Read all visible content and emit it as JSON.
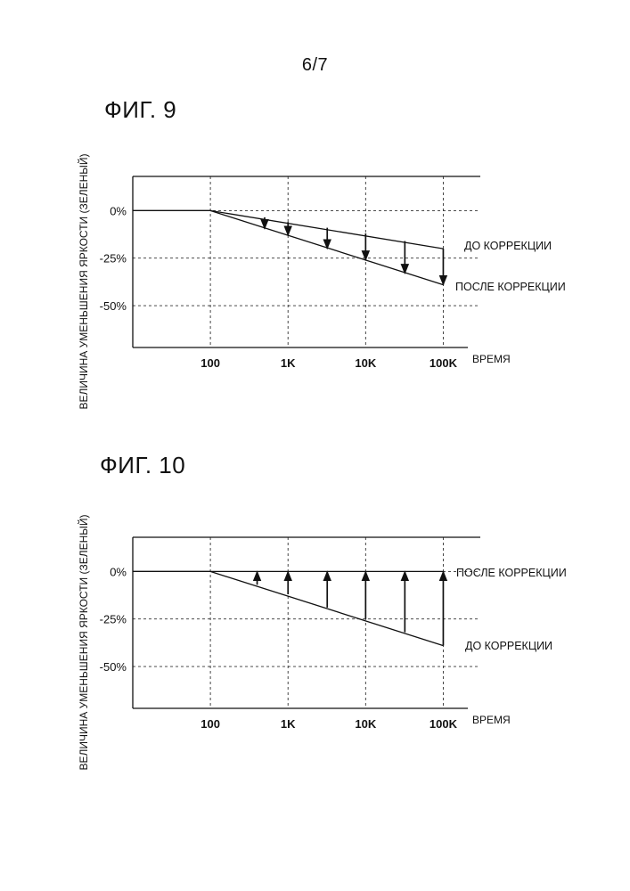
{
  "page_number": "6/7",
  "charts": [
    {
      "id": "fig9",
      "title": "ФИГ. 9",
      "ylabel": "ВЕЛИЧИНА УМЕНЬШЕНИЯ ЯРКОСТИ (ЗЕЛЕНЫЙ)",
      "xlabel": "ВРЕМЯ",
      "x_ticks": [
        "100",
        "1K",
        "10K",
        "100K"
      ],
      "y_ticks": [
        "0%",
        "-25%",
        "-50%"
      ],
      "series_labels": [
        "ДО КОРРЕКЦИИ",
        "ПОСЛЕ КОРРЕКЦИИ"
      ]
    },
    {
      "id": "fig10",
      "title": "ФИГ. 10",
      "ylabel": "ВЕЛИЧИНА УМЕНЬШЕНИЯ ЯРКОСТИ (ЗЕЛЕНЫЙ)",
      "xlabel": "ВРЕМЯ",
      "x_ticks": [
        "100",
        "1K",
        "10K",
        "100K"
      ],
      "y_ticks": [
        "0%",
        "-25%",
        "-50%"
      ],
      "series_labels": [
        "ПОСЛЕ КОРРЕКЦИИ",
        "ДО КОРРЕКЦИИ"
      ]
    }
  ],
  "chart_data": [
    {
      "type": "line",
      "title": "ФИГ. 9",
      "xlabel": "ВРЕМЯ",
      "ylabel": "ВЕЛИЧИНА УМЕНЬШЕНИЯ ЯРКОСТИ (ЗЕЛЕНЫЙ)",
      "x_scale": "log",
      "x_ticks": [
        100,
        1000,
        10000,
        100000
      ],
      "x_tick_labels": [
        "100",
        "1K",
        "10K",
        "100K"
      ],
      "xlim": [
        10,
        300000
      ],
      "ylim": [
        -72,
        18
      ],
      "y_ticks": [
        0,
        -25,
        -50
      ],
      "y_tick_labels": [
        "0%",
        "-25%",
        "-50%"
      ],
      "grid": true,
      "series": [
        {
          "name": "ДО КОРРЕКЦИИ",
          "x": [
            10,
            100,
            100000
          ],
          "y": [
            0,
            0,
            -20
          ]
        },
        {
          "name": "ПОСЛЕ КОРРЕКЦИИ",
          "x": [
            10,
            100,
            100000
          ],
          "y": [
            0,
            0,
            -39
          ]
        }
      ],
      "arrows": [
        {
          "x": 500,
          "from": -3.5,
          "to": -9.5
        },
        {
          "x": 1000,
          "from": -6,
          "to": -13
        },
        {
          "x": 3200,
          "from": -9,
          "to": -20
        },
        {
          "x": 10000,
          "from": -12,
          "to": -26
        },
        {
          "x": 32000,
          "from": -16,
          "to": -33
        },
        {
          "x": 100000,
          "from": -20,
          "to": -39
        }
      ],
      "arrow_direction": "down"
    },
    {
      "type": "line",
      "title": "ФИГ. 10",
      "xlabel": "ВРЕМЯ",
      "ylabel": "ВЕЛИЧИНА УМЕНЬШЕНИЯ ЯРКОСТИ (ЗЕЛЕНЫЙ)",
      "x_scale": "log",
      "x_ticks": [
        100,
        1000,
        10000,
        100000
      ],
      "x_tick_labels": [
        "100",
        "1K",
        "10K",
        "100K"
      ],
      "xlim": [
        10,
        300000
      ],
      "ylim": [
        -72,
        18
      ],
      "y_ticks": [
        0,
        -25,
        -50
      ],
      "y_tick_labels": [
        "0%",
        "-25%",
        "-50%"
      ],
      "grid": true,
      "series": [
        {
          "name": "ПОСЛЕ КОРРЕКЦИИ",
          "x": [
            10,
            100000
          ],
          "y": [
            0,
            0
          ]
        },
        {
          "name": "ДО КОРРЕКЦИИ",
          "x": [
            10,
            100,
            100000
          ],
          "y": [
            0,
            0,
            -39
          ]
        }
      ],
      "arrows": [
        {
          "x": 400,
          "from": -7,
          "to": 0
        },
        {
          "x": 1000,
          "from": -12,
          "to": 0
        },
        {
          "x": 3200,
          "from": -19,
          "to": 0
        },
        {
          "x": 10000,
          "from": -25,
          "to": 0
        },
        {
          "x": 32000,
          "from": -32,
          "to": 0
        },
        {
          "x": 100000,
          "from": -39,
          "to": 0
        }
      ],
      "arrow_direction": "up"
    }
  ]
}
